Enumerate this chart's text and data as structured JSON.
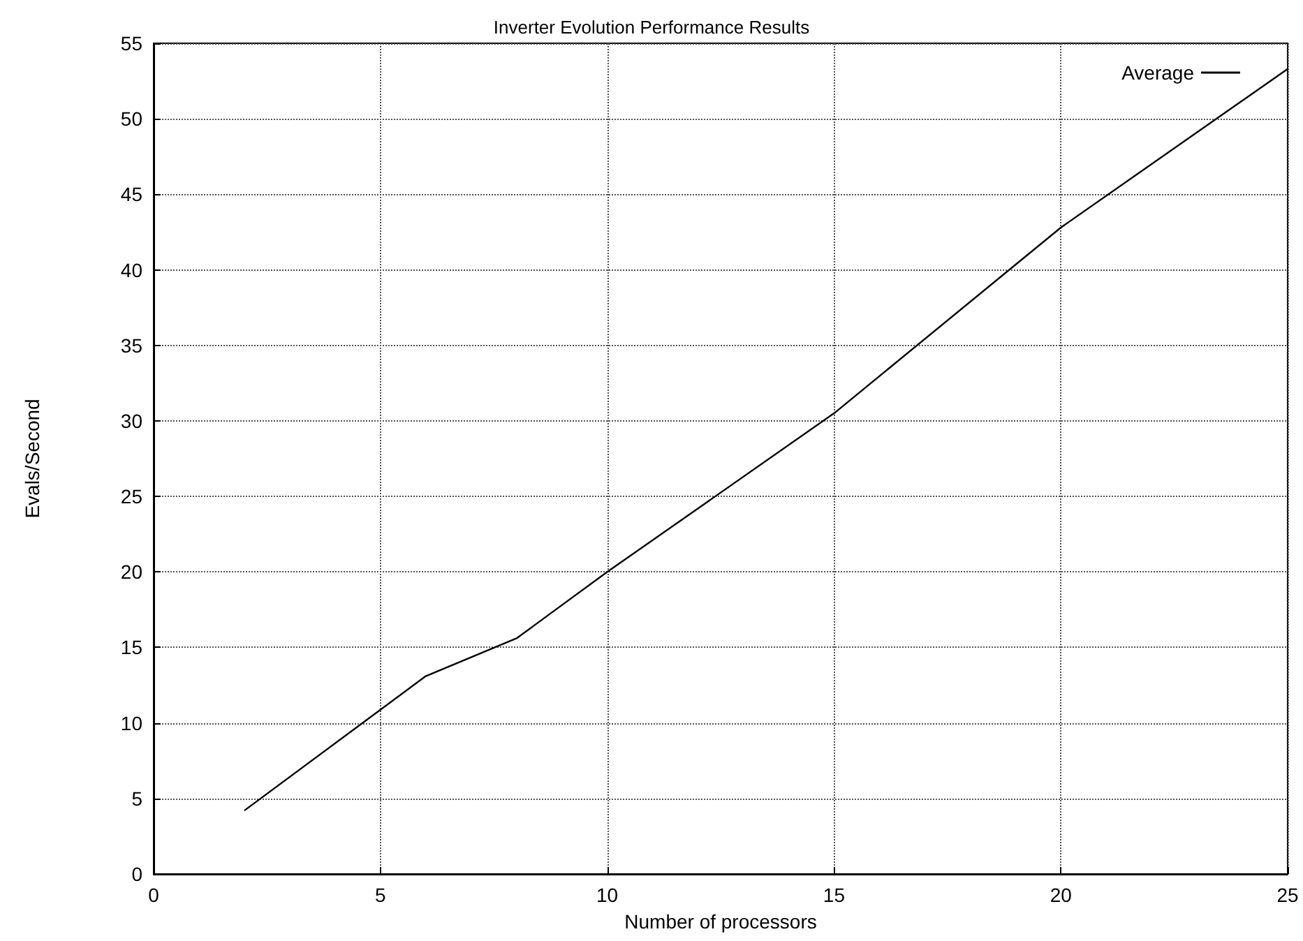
{
  "chart_data": {
    "type": "line",
    "title": "Inverter Evolution Performance Results",
    "xlabel": "Number of processors",
    "ylabel": "Evals/Second",
    "x": [
      2,
      6,
      8,
      10,
      15,
      20,
      25
    ],
    "series": [
      {
        "name": "Average",
        "color": "#000000",
        "values": [
          4.2,
          13.1,
          15.6,
          20,
          30.5,
          42.8,
          53.3
        ]
      }
    ],
    "xlim": [
      0,
      25
    ],
    "xticks": [
      0,
      5,
      10,
      15,
      20,
      25
    ],
    "ylim": [
      0,
      55
    ],
    "yticks": [
      0,
      5,
      10,
      15,
      20,
      25,
      30,
      35,
      40,
      45,
      50,
      55
    ],
    "grid": true,
    "legend": "top right",
    "marker": "none",
    "line_style": "solid"
  }
}
